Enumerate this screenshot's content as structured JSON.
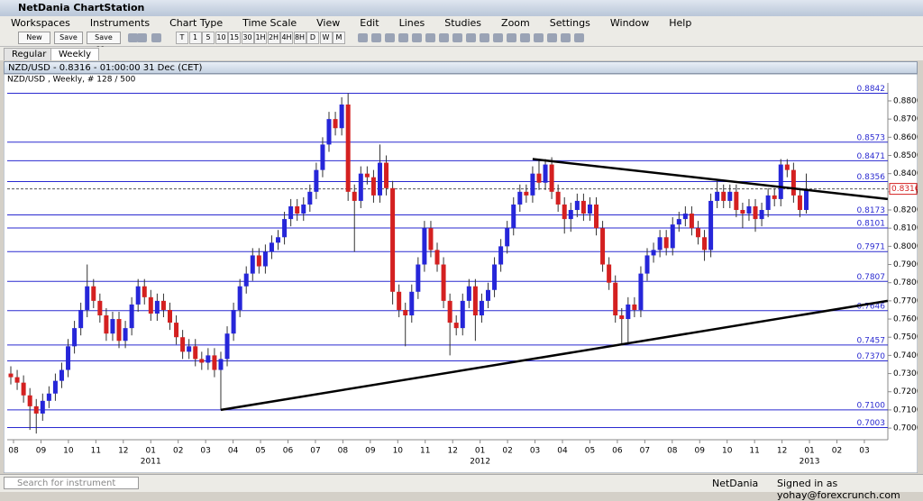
{
  "window": {
    "title": "NetDania ChartStation"
  },
  "menu": [
    "Workspaces",
    "Instruments",
    "Chart Type",
    "Time Scale",
    "View",
    "Edit",
    "Lines",
    "Studies",
    "Zoom",
    "Settings",
    "Window",
    "Help"
  ],
  "toolbar": {
    "buttons": [
      "New",
      "Save",
      "Save as..."
    ],
    "timeframes": [
      "T",
      "1",
      "5",
      "10",
      "15",
      "30",
      "1H",
      "2H",
      "4H",
      "8H",
      "D",
      "W",
      "M"
    ]
  },
  "tabs": [
    "Regular",
    "Weekly"
  ],
  "chart_window": {
    "title": "NZD/USD - 0.8316 - 01:00:00  31 Dec (CET)",
    "info": "NZD/USD , Weekly, # 128 / 500"
  },
  "chart_data": {
    "type": "candlestick",
    "up_color": "#2626d9",
    "down_color": "#d42020",
    "ylim": [
      0.6936,
      0.8899
    ],
    "yticks": [
      {
        "value": 0.88,
        "label": "0.8800"
      },
      {
        "value": 0.87,
        "label": "0.8700"
      },
      {
        "value": 0.86,
        "label": "0.8600"
      },
      {
        "value": 0.85,
        "label": "0.8500"
      },
      {
        "value": 0.84,
        "label": "0.8400"
      },
      {
        "value": 0.83,
        "label": "0.8300"
      },
      {
        "value": 0.82,
        "label": "0.8200"
      },
      {
        "value": 0.81,
        "label": "0.8100"
      },
      {
        "value": 0.8,
        "label": "0.8000"
      },
      {
        "value": 0.79,
        "label": "0.7900"
      },
      {
        "value": 0.78,
        "label": "0.7800"
      },
      {
        "value": 0.77,
        "label": "0.7700"
      },
      {
        "value": 0.76,
        "label": "0.7600"
      },
      {
        "value": 0.75,
        "label": "0.7500"
      },
      {
        "value": 0.74,
        "label": "0.7400"
      },
      {
        "value": 0.73,
        "label": "0.7300"
      },
      {
        "value": 0.72,
        "label": "0.7200"
      },
      {
        "value": 0.71,
        "label": "0.7100"
      },
      {
        "value": 0.7,
        "label": "0.7000"
      }
    ],
    "levels": [
      0.8842,
      0.8573,
      0.8471,
      0.8356,
      0.8173,
      0.8101,
      0.7971,
      0.7807,
      0.7646,
      0.7457,
      {
        "value": 0.737,
        "label": "0.7370"
      },
      {
        "value": 0.71,
        "label": "0.7100"
      },
      0.7003
    ],
    "current": 0.8316,
    "months": [
      "08",
      "09",
      "10",
      "11",
      "12",
      "01",
      "02",
      "03",
      "04",
      "05",
      "06",
      "07",
      "08",
      "09",
      "10",
      "11",
      "12",
      "01",
      "02",
      "03",
      "04",
      "05",
      "06",
      "07",
      "08",
      "09",
      "10",
      "11",
      "12",
      "01",
      "02",
      "03"
    ],
    "years": [
      {
        "month": 5,
        "label": "2011"
      },
      {
        "month": 17,
        "label": "2012"
      },
      {
        "month": 29,
        "label": "2013"
      }
    ],
    "trendlines": [
      {
        "from": [
          33,
          0.71
        ],
        "to": [
          137.8,
          0.77
        ]
      },
      {
        "from": [
          82,
          0.848
        ],
        "to": [
          137.8,
          0.826
        ]
      }
    ],
    "candles": [
      [
        0.73,
        0.734,
        0.724,
        0.728
      ],
      [
        0.728,
        0.732,
        0.721,
        0.725
      ],
      [
        0.725,
        0.729,
        0.714,
        0.718
      ],
      [
        0.718,
        0.722,
        0.699,
        0.712
      ],
      [
        0.712,
        0.716,
        0.697,
        0.708
      ],
      [
        0.708,
        0.719,
        0.704,
        0.715
      ],
      [
        0.715,
        0.723,
        0.711,
        0.719
      ],
      [
        0.719,
        0.73,
        0.715,
        0.726
      ],
      [
        0.726,
        0.736,
        0.722,
        0.732
      ],
      [
        0.732,
        0.749,
        0.728,
        0.745
      ],
      [
        0.745,
        0.759,
        0.741,
        0.755
      ],
      [
        0.755,
        0.769,
        0.751,
        0.765
      ],
      [
        0.765,
        0.79,
        0.761,
        0.778
      ],
      [
        0.778,
        0.782,
        0.766,
        0.77
      ],
      [
        0.77,
        0.774,
        0.758,
        0.762
      ],
      [
        0.762,
        0.766,
        0.748,
        0.752
      ],
      [
        0.752,
        0.764,
        0.748,
        0.76
      ],
      [
        0.76,
        0.764,
        0.744,
        0.748
      ],
      [
        0.748,
        0.759,
        0.744,
        0.755
      ],
      [
        0.755,
        0.772,
        0.751,
        0.768
      ],
      [
        0.768,
        0.782,
        0.764,
        0.778
      ],
      [
        0.778,
        0.782,
        0.768,
        0.772
      ],
      [
        0.772,
        0.776,
        0.759,
        0.763
      ],
      [
        0.763,
        0.774,
        0.759,
        0.77
      ],
      [
        0.77,
        0.774,
        0.761,
        0.765
      ],
      [
        0.765,
        0.769,
        0.754,
        0.758
      ],
      [
        0.758,
        0.762,
        0.746,
        0.75
      ],
      [
        0.75,
        0.754,
        0.738,
        0.742
      ],
      [
        0.742,
        0.749,
        0.738,
        0.745
      ],
      [
        0.745,
        0.749,
        0.734,
        0.738
      ],
      [
        0.738,
        0.742,
        0.732,
        0.736
      ],
      [
        0.736,
        0.744,
        0.732,
        0.74
      ],
      [
        0.74,
        0.744,
        0.728,
        0.732
      ],
      [
        0.732,
        0.742,
        0.71,
        0.738
      ],
      [
        0.738,
        0.756,
        0.734,
        0.752
      ],
      [
        0.752,
        0.769,
        0.748,
        0.765
      ],
      [
        0.765,
        0.782,
        0.761,
        0.778
      ],
      [
        0.778,
        0.789,
        0.774,
        0.785
      ],
      [
        0.785,
        0.799,
        0.781,
        0.795
      ],
      [
        0.795,
        0.799,
        0.785,
        0.789
      ],
      [
        0.789,
        0.801,
        0.785,
        0.797
      ],
      [
        0.797,
        0.806,
        0.793,
        0.802
      ],
      [
        0.802,
        0.809,
        0.798,
        0.805
      ],
      [
        0.805,
        0.819,
        0.801,
        0.815
      ],
      [
        0.815,
        0.826,
        0.811,
        0.822
      ],
      [
        0.822,
        0.826,
        0.814,
        0.818
      ],
      [
        0.818,
        0.827,
        0.814,
        0.823
      ],
      [
        0.823,
        0.834,
        0.819,
        0.83
      ],
      [
        0.83,
        0.846,
        0.826,
        0.842
      ],
      [
        0.842,
        0.86,
        0.838,
        0.856
      ],
      [
        0.856,
        0.874,
        0.852,
        0.87
      ],
      [
        0.87,
        0.874,
        0.861,
        0.865
      ],
      [
        0.865,
        0.882,
        0.861,
        0.878
      ],
      [
        0.878,
        0.8842,
        0.825,
        0.83
      ],
      [
        0.83,
        0.834,
        0.797,
        0.825
      ],
      [
        0.825,
        0.844,
        0.821,
        0.84
      ],
      [
        0.84,
        0.844,
        0.834,
        0.838
      ],
      [
        0.838,
        0.842,
        0.824,
        0.828
      ],
      [
        0.828,
        0.856,
        0.824,
        0.846
      ],
      [
        0.846,
        0.85,
        0.828,
        0.832
      ],
      [
        0.832,
        0.836,
        0.768,
        0.775
      ],
      [
        0.775,
        0.779,
        0.761,
        0.765
      ],
      [
        0.765,
        0.769,
        0.745,
        0.762
      ],
      [
        0.762,
        0.779,
        0.758,
        0.775
      ],
      [
        0.775,
        0.794,
        0.771,
        0.79
      ],
      [
        0.79,
        0.814,
        0.786,
        0.81
      ],
      [
        0.81,
        0.814,
        0.794,
        0.798
      ],
      [
        0.798,
        0.802,
        0.786,
        0.79
      ],
      [
        0.79,
        0.794,
        0.766,
        0.77
      ],
      [
        0.77,
        0.774,
        0.74,
        0.758
      ],
      [
        0.758,
        0.762,
        0.751,
        0.755
      ],
      [
        0.755,
        0.774,
        0.751,
        0.77
      ],
      [
        0.77,
        0.782,
        0.766,
        0.778
      ],
      [
        0.778,
        0.782,
        0.748,
        0.762
      ],
      [
        0.762,
        0.774,
        0.758,
        0.77
      ],
      [
        0.77,
        0.78,
        0.766,
        0.776
      ],
      [
        0.776,
        0.794,
        0.772,
        0.79
      ],
      [
        0.79,
        0.804,
        0.786,
        0.8
      ],
      [
        0.8,
        0.814,
        0.796,
        0.81
      ],
      [
        0.81,
        0.827,
        0.806,
        0.823
      ],
      [
        0.823,
        0.834,
        0.819,
        0.83
      ],
      [
        0.83,
        0.834,
        0.824,
        0.828
      ],
      [
        0.828,
        0.844,
        0.824,
        0.84
      ],
      [
        0.84,
        0.848,
        0.831,
        0.835
      ],
      [
        0.835,
        0.848,
        0.831,
        0.845
      ],
      [
        0.845,
        0.849,
        0.826,
        0.83
      ],
      [
        0.83,
        0.834,
        0.819,
        0.823
      ],
      [
        0.823,
        0.827,
        0.807,
        0.815
      ],
      [
        0.815,
        0.824,
        0.808,
        0.82
      ],
      [
        0.82,
        0.829,
        0.816,
        0.825
      ],
      [
        0.825,
        0.829,
        0.814,
        0.818
      ],
      [
        0.818,
        0.827,
        0.814,
        0.823
      ],
      [
        0.823,
        0.827,
        0.806,
        0.81
      ],
      [
        0.81,
        0.814,
        0.786,
        0.79
      ],
      [
        0.79,
        0.794,
        0.776,
        0.78
      ],
      [
        0.78,
        0.784,
        0.758,
        0.762
      ],
      [
        0.762,
        0.766,
        0.746,
        0.76
      ],
      [
        0.76,
        0.772,
        0.746,
        0.768
      ],
      [
        0.768,
        0.772,
        0.761,
        0.765
      ],
      [
        0.765,
        0.789,
        0.761,
        0.785
      ],
      [
        0.785,
        0.799,
        0.781,
        0.795
      ],
      [
        0.795,
        0.802,
        0.791,
        0.798
      ],
      [
        0.798,
        0.809,
        0.794,
        0.805
      ],
      [
        0.805,
        0.809,
        0.795,
        0.799
      ],
      [
        0.799,
        0.816,
        0.795,
        0.812
      ],
      [
        0.812,
        0.819,
        0.808,
        0.815
      ],
      [
        0.815,
        0.822,
        0.811,
        0.818
      ],
      [
        0.818,
        0.822,
        0.806,
        0.81
      ],
      [
        0.81,
        0.814,
        0.801,
        0.805
      ],
      [
        0.805,
        0.809,
        0.792,
        0.798
      ],
      [
        0.798,
        0.829,
        0.794,
        0.825
      ],
      [
        0.825,
        0.836,
        0.821,
        0.83
      ],
      [
        0.83,
        0.834,
        0.821,
        0.825
      ],
      [
        0.825,
        0.834,
        0.821,
        0.83
      ],
      [
        0.83,
        0.834,
        0.816,
        0.82
      ],
      [
        0.82,
        0.824,
        0.81,
        0.818
      ],
      [
        0.818,
        0.826,
        0.814,
        0.822
      ],
      [
        0.822,
        0.826,
        0.808,
        0.815
      ],
      [
        0.815,
        0.824,
        0.811,
        0.82
      ],
      [
        0.82,
        0.832,
        0.816,
        0.828
      ],
      [
        0.828,
        0.832,
        0.822,
        0.826
      ],
      [
        0.826,
        0.848,
        0.822,
        0.845
      ],
      [
        0.845,
        0.848,
        0.838,
        0.842
      ],
      [
        0.842,
        0.846,
        0.824,
        0.828
      ],
      [
        0.828,
        0.832,
        0.816,
        0.82
      ],
      [
        0.82,
        0.84,
        0.818,
        0.8316
      ]
    ]
  },
  "status": {
    "search": "Search for instrument",
    "brand": "NetDania",
    "signed_in": "Signed in as yohay@forexcrunch.com"
  }
}
